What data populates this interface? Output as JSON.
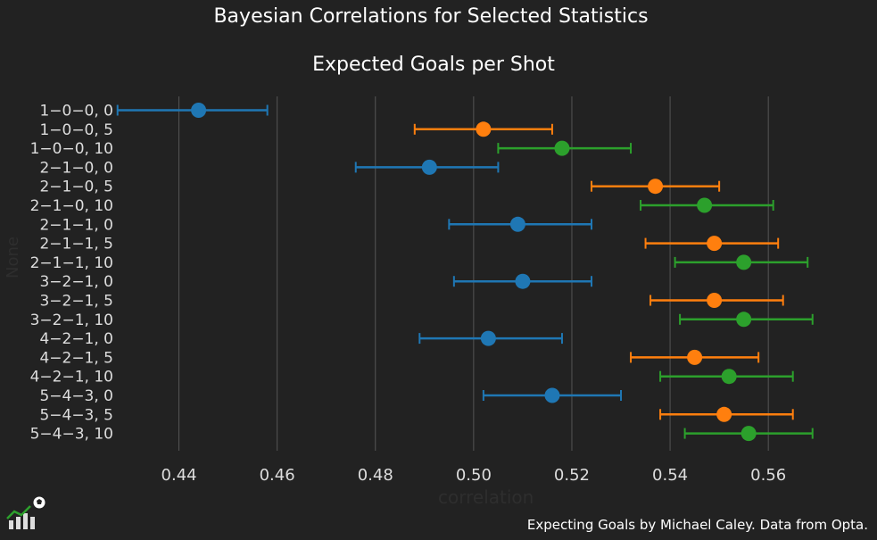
{
  "suptitle": "Bayesian Correlations for Selected Statistics",
  "footer": "Expecting Goals by Michael Caley. Data from Opta.",
  "chart_data": {
    "type": "scatter",
    "title": "Expected Goals per Shot",
    "xlabel": "correlation",
    "ylabel": "None",
    "xlim": [
      0.429,
      0.5725
    ],
    "grid": "x",
    "xticks": [
      "0.44",
      "0.46",
      "0.48",
      "0.50",
      "0.52",
      "0.54",
      "0.56"
    ],
    "xtick_values": [
      0.44,
      0.46,
      0.48,
      0.5,
      0.52,
      0.54,
      0.56
    ],
    "series_colors": [
      "#1f77b4",
      "#ff7f0e",
      "#2ca02c"
    ],
    "points": [
      {
        "label": "1−0−0, 0",
        "value": 0.444,
        "lo": 0.4275,
        "hi": 0.458,
        "color": "#1f77b4"
      },
      {
        "label": "1−0−0, 5",
        "value": 0.502,
        "lo": 0.488,
        "hi": 0.516,
        "color": "#ff7f0e"
      },
      {
        "label": "1−0−0, 10",
        "value": 0.518,
        "lo": 0.505,
        "hi": 0.532,
        "color": "#2ca02c"
      },
      {
        "label": "2−1−0, 0",
        "value": 0.491,
        "lo": 0.476,
        "hi": 0.505,
        "color": "#1f77b4"
      },
      {
        "label": "2−1−0, 5",
        "value": 0.537,
        "lo": 0.524,
        "hi": 0.55,
        "color": "#ff7f0e"
      },
      {
        "label": "2−1−0, 10",
        "value": 0.547,
        "lo": 0.534,
        "hi": 0.561,
        "color": "#2ca02c"
      },
      {
        "label": "2−1−1, 0",
        "value": 0.509,
        "lo": 0.495,
        "hi": 0.524,
        "color": "#1f77b4"
      },
      {
        "label": "2−1−1, 5",
        "value": 0.549,
        "lo": 0.535,
        "hi": 0.562,
        "color": "#ff7f0e"
      },
      {
        "label": "2−1−1, 10",
        "value": 0.555,
        "lo": 0.541,
        "hi": 0.568,
        "color": "#2ca02c"
      },
      {
        "label": "3−2−1, 0",
        "value": 0.51,
        "lo": 0.496,
        "hi": 0.524,
        "color": "#1f77b4"
      },
      {
        "label": "3−2−1, 5",
        "value": 0.549,
        "lo": 0.536,
        "hi": 0.563,
        "color": "#ff7f0e"
      },
      {
        "label": "3−2−1, 10",
        "value": 0.555,
        "lo": 0.542,
        "hi": 0.569,
        "color": "#2ca02c"
      },
      {
        "label": "4−2−1, 0",
        "value": 0.503,
        "lo": 0.489,
        "hi": 0.518,
        "color": "#1f77b4"
      },
      {
        "label": "4−2−1, 5",
        "value": 0.545,
        "lo": 0.532,
        "hi": 0.558,
        "color": "#ff7f0e"
      },
      {
        "label": "4−2−1, 10",
        "value": 0.552,
        "lo": 0.538,
        "hi": 0.565,
        "color": "#2ca02c"
      },
      {
        "label": "5−4−3, 0",
        "value": 0.516,
        "lo": 0.502,
        "hi": 0.53,
        "color": "#1f77b4"
      },
      {
        "label": "5−4−3, 5",
        "value": 0.551,
        "lo": 0.538,
        "hi": 0.565,
        "color": "#ff7f0e"
      },
      {
        "label": "5−4−3, 10",
        "value": 0.556,
        "lo": 0.543,
        "hi": 0.569,
        "color": "#2ca02c"
      }
    ]
  }
}
